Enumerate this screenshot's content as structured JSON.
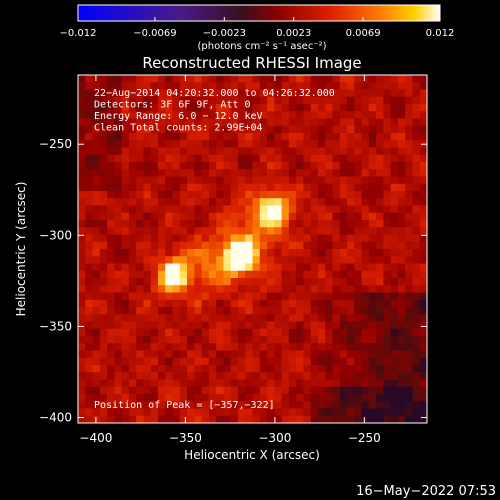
{
  "chart_data": {
    "type": "heatmap",
    "title": "Reconstructed RHESSI Image",
    "xlabel": "Heliocentric X (arcsec)",
    "ylabel": "Heliocentric Y (arcsec)",
    "xlim": [
      -410,
      -215
    ],
    "ylim": [
      -403,
      -212
    ],
    "x_ticks": [
      -400,
      -350,
      -300,
      -250
    ],
    "y_ticks": [
      -400,
      -350,
      -300,
      -250
    ],
    "x_tick_labels": [
      "−400",
      "−350",
      "−300",
      "−250"
    ],
    "y_tick_labels": [
      "−400",
      "−350",
      "−300",
      "−250"
    ],
    "colorbar": {
      "range": [
        -0.012,
        0.012
      ],
      "ticks": [
        -0.012,
        -0.0069,
        -0.0023,
        0.0023,
        0.0069,
        0.012
      ],
      "tick_labels": [
        "−0.012",
        "−0.0069",
        "−0.0023",
        "0.0023",
        "0.0069",
        "0.012"
      ],
      "unit_label": "(photons cm⁻² s⁻¹ asec⁻²)"
    },
    "sources": [
      {
        "x": -357,
        "y": -322,
        "level": 1.0
      },
      {
        "x": -320,
        "y": -312,
        "level": 0.95
      },
      {
        "x": -301,
        "y": -285,
        "level": 0.92
      }
    ],
    "annotations": [
      "22−Aug−2014 04:20:32.000 to 04:26:32.000",
      "Detectors: 3F 6F 9F, Att 0",
      "Energy Range: 6.0 − 12.0 keV",
      "Clean     Total counts: 2.99E+04"
    ],
    "peak_label": "Position of Peak = [−357,−322]",
    "timestamp": "16−May−2022 07:53"
  },
  "colors": {
    "background": "#000000",
    "colormap": [
      "#0000ff",
      "#5a1aa0",
      "#4a1a3a",
      "#b00000",
      "#e83000",
      "#ff8800",
      "#ffd800",
      "#ffffff"
    ]
  }
}
